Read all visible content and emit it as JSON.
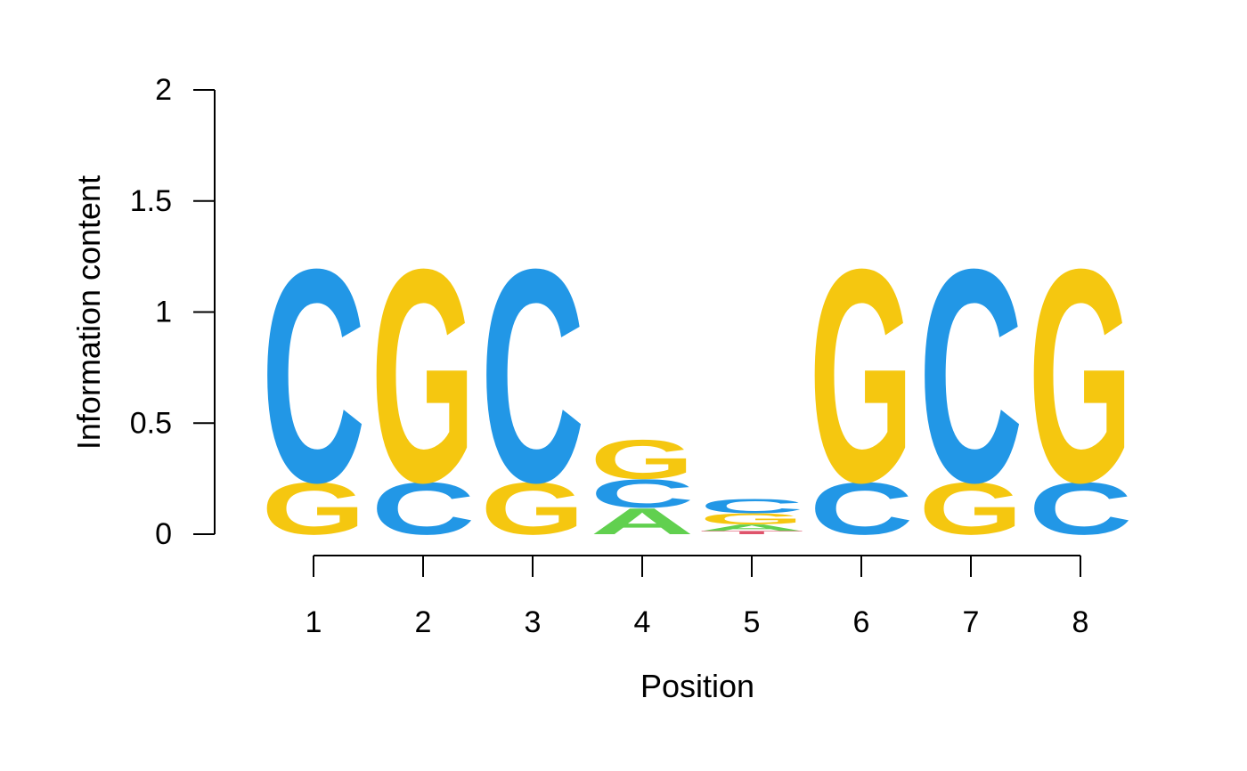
{
  "chart_data": {
    "type": "sequence-logo",
    "title": "",
    "xlabel": "Position",
    "ylabel": "Information content",
    "ylim": [
      0,
      2
    ],
    "yticks": [
      "0",
      "0.5",
      "1",
      "1.5",
      "2"
    ],
    "xticks": [
      "1",
      "2",
      "3",
      "4",
      "5",
      "6",
      "7",
      "8"
    ],
    "colors": {
      "A": "#61D04F",
      "C": "#2297E6",
      "G": "#F5C710",
      "T": "#DF536B"
    },
    "positions": [
      {
        "position": 1,
        "stack": [
          {
            "letter": "G",
            "height": 0.24
          },
          {
            "letter": "C",
            "height": 0.98
          }
        ]
      },
      {
        "position": 2,
        "stack": [
          {
            "letter": "C",
            "height": 0.24
          },
          {
            "letter": "G",
            "height": 0.98
          }
        ]
      },
      {
        "position": 3,
        "stack": [
          {
            "letter": "G",
            "height": 0.24
          },
          {
            "letter": "C",
            "height": 0.98
          }
        ]
      },
      {
        "position": 4,
        "stack": [
          {
            "letter": "A",
            "height": 0.12
          },
          {
            "letter": "C",
            "height": 0.13
          },
          {
            "letter": "G",
            "height": 0.18
          }
        ]
      },
      {
        "position": 5,
        "stack": [
          {
            "letter": "T",
            "height": 0.015
          },
          {
            "letter": "A",
            "height": 0.03
          },
          {
            "letter": "G",
            "height": 0.05
          },
          {
            "letter": "C",
            "height": 0.065
          }
        ]
      },
      {
        "position": 6,
        "stack": [
          {
            "letter": "C",
            "height": 0.24
          },
          {
            "letter": "G",
            "height": 0.98
          }
        ]
      },
      {
        "position": 7,
        "stack": [
          {
            "letter": "G",
            "height": 0.24
          },
          {
            "letter": "C",
            "height": 0.98
          }
        ]
      },
      {
        "position": 8,
        "stack": [
          {
            "letter": "C",
            "height": 0.24
          },
          {
            "letter": "G",
            "height": 0.98
          }
        ]
      }
    ]
  }
}
